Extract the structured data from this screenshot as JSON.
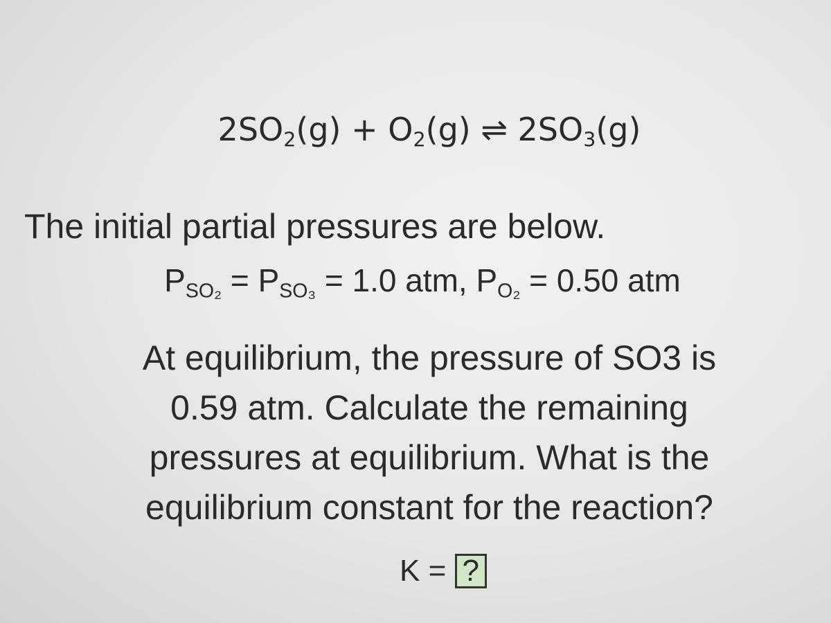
{
  "equation": [
    "2SO",
    "2",
    "(g) + O",
    "2",
    "(g) ⇌ 2SO",
    "3",
    "(g)"
  ],
  "intro": "The initial partial pressures are below.",
  "pressures": [
    "P",
    "SO₂",
    " = P",
    "SO₃",
    " = 1.0 atm,  P",
    "O₂",
    " = 0.50 atm"
  ],
  "question": [
    "At equilibrium, the pressure of SO3 is",
    "0.59 atm. Calculate the remaining",
    "pressures at equilibrium. What is the",
    "equilibrium constant for the reaction?"
  ],
  "answer": {
    "label": "K =",
    "blank": "?"
  }
}
